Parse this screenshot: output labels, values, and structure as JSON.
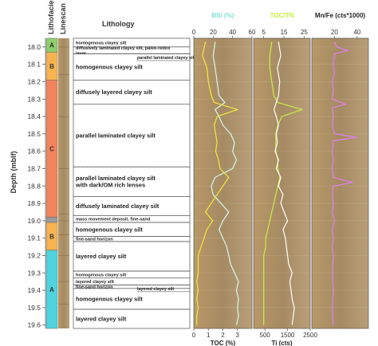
{
  "chart_data": {
    "type": "line",
    "depth_axis": {
      "label": "Depth (mblf)",
      "ylim": [
        17.95,
        19.62
      ],
      "ticks": [
        18.0,
        18.1,
        18.2,
        18.3,
        18.4,
        18.5,
        18.6,
        18.7,
        18.8,
        18.9,
        19.0,
        19.1,
        19.2,
        19.3,
        19.4,
        19.5,
        19.6
      ],
      "tick_labels": [
        "18.0",
        "18.1",
        "18.2",
        "18.3",
        "18.4",
        "18.5",
        "18.6",
        "18.7",
        "18.8",
        "18.9",
        "19.0",
        "19.1",
        "19.2",
        "19.3",
        "19.4",
        "19.5",
        "19.6"
      ]
    },
    "column_headers": {
      "lithofacies": "Lithofacies",
      "linescan": "Linescan",
      "lithology": "Lithology"
    },
    "lithofacies": [
      {
        "label": "A",
        "top": 17.95,
        "bottom": 18.03,
        "color": "#8fd06a"
      },
      {
        "label": "B",
        "top": 18.03,
        "bottom": 18.19,
        "color": "#f7b350"
      },
      {
        "label": "C",
        "top": 18.19,
        "bottom": 18.98,
        "color": "#f4845c"
      },
      {
        "label": "",
        "top": 18.98,
        "bottom": 19.01,
        "color": "#9b9b9b"
      },
      {
        "label": "B",
        "top": 19.01,
        "bottom": 19.17,
        "color": "#f7b350"
      },
      {
        "label": "A",
        "top": 19.17,
        "bottom": 19.62,
        "color": "#4fd3df"
      }
    ],
    "lithology": [
      {
        "label": "homogenous clayey silt",
        "top": 17.95,
        "bottom": 18.0,
        "size": "small",
        "dashed": false
      },
      {
        "label": "diffusively laminated clayey silt, paleo-redox layer",
        "top": 18.0,
        "bottom": 18.04,
        "size": "small",
        "dashed": false
      },
      {
        "label": "homogenous clayey silt",
        "top": 18.04,
        "bottom": 18.19,
        "size": "large",
        "dashed": false
      },
      {
        "label": "diffusely layered clayey silt",
        "top": 18.19,
        "bottom": 18.33,
        "size": "large",
        "dashed": false
      },
      {
        "label": "parallel laminated clayey silt",
        "top": 18.33,
        "bottom": 18.69,
        "size": "large",
        "dashed": true
      },
      {
        "label": "parallel laminated clayey silt with dark/OM rich lenses",
        "top": 18.69,
        "bottom": 18.86,
        "size": "large",
        "dashed": false
      },
      {
        "label": "diffusely laminated clayey silt",
        "top": 18.86,
        "bottom": 18.97,
        "size": "large",
        "dashed": false
      },
      {
        "label": "mass movement deposit, fine-sand",
        "top": 18.97,
        "bottom": 19.01,
        "size": "small",
        "dashed": false
      },
      {
        "label": "homogenous clayey silt",
        "top": 19.01,
        "bottom": 19.09,
        "size": "large",
        "dashed": false
      },
      {
        "label": "fine-sand horizon",
        "top": 19.09,
        "bottom": 19.12,
        "size": "small",
        "dashed": false
      },
      {
        "label": "layered clayey silt",
        "top": 19.12,
        "bottom": 19.29,
        "size": "large",
        "dashed": false
      },
      {
        "label": "homogenous clayey silt",
        "top": 19.29,
        "bottom": 19.33,
        "size": "small",
        "dashed": false
      },
      {
        "label": "layered clayey silt",
        "top": 19.33,
        "bottom": 19.37,
        "size": "small",
        "dashed": false
      },
      {
        "label": "fine-sand horizon",
        "top": 19.37,
        "bottom": 19.39,
        "size": "small",
        "dashed": false
      },
      {
        "label": "homogenous clayey silt",
        "top": 19.39,
        "bottom": 19.51,
        "size": "large",
        "dashed": false
      },
      {
        "label": "layered clayey silt",
        "top": 19.51,
        "bottom": 19.62,
        "size": "large",
        "dashed": false
      }
    ],
    "lithology_notes": [
      {
        "label": "parallel laminated clayey silt",
        "depth": 18.06
      },
      {
        "label": "layered clayey silt",
        "depth": 19.39
      }
    ],
    "panels": [
      {
        "top_label": "BSi (%)",
        "top_label_color": "#7fe3d2",
        "top_ticks": [
          0,
          20,
          40,
          60
        ],
        "top_range": [
          0,
          60
        ],
        "bottom_label": "TOC (%)",
        "bottom_label_color": "#222222",
        "bottom_ticks": [
          0,
          1,
          2,
          3
        ],
        "bottom_range": [
          0,
          4
        ],
        "series": [
          {
            "name": "BSi (%)",
            "color": "#d4faf0",
            "scale": "top",
            "values": [
              [
                17.97,
                22
              ],
              [
                18.05,
                20
              ],
              [
                18.12,
                22
              ],
              [
                18.2,
                24
              ],
              [
                18.28,
                26
              ],
              [
                18.32,
                32
              ],
              [
                18.36,
                22
              ],
              [
                18.4,
                26
              ],
              [
                18.45,
                30
              ],
              [
                18.5,
                38
              ],
              [
                18.55,
                42
              ],
              [
                18.6,
                40
              ],
              [
                18.65,
                44
              ],
              [
                18.7,
                40
              ],
              [
                18.75,
                22
              ],
              [
                18.8,
                18
              ],
              [
                18.85,
                20
              ],
              [
                18.9,
                28
              ],
              [
                18.95,
                36
              ],
              [
                19.0,
                30
              ],
              [
                19.05,
                26
              ],
              [
                19.1,
                30
              ],
              [
                19.15,
                34
              ],
              [
                19.2,
                36
              ],
              [
                19.25,
                38
              ],
              [
                19.3,
                42
              ],
              [
                19.35,
                46
              ],
              [
                19.4,
                44
              ],
              [
                19.45,
                46
              ],
              [
                19.5,
                45
              ],
              [
                19.55,
                46
              ],
              [
                19.6,
                44
              ]
            ]
          },
          {
            "name": "TOC (%)",
            "color": "#f2ea3c",
            "scale": "bottom",
            "values": [
              [
                17.97,
                0.8
              ],
              [
                18.05,
                0.6
              ],
              [
                18.12,
                0.9
              ],
              [
                18.2,
                1.0
              ],
              [
                18.28,
                1.2
              ],
              [
                18.32,
                1.4
              ],
              [
                18.36,
                3.0
              ],
              [
                18.4,
                1.6
              ],
              [
                18.45,
                1.4
              ],
              [
                18.5,
                1.5
              ],
              [
                18.55,
                1.6
              ],
              [
                18.6,
                1.5
              ],
              [
                18.65,
                1.7
              ],
              [
                18.7,
                1.8
              ],
              [
                18.75,
                2.4
              ],
              [
                18.8,
                2.0
              ],
              [
                18.85,
                1.6
              ],
              [
                18.9,
                1.2
              ],
              [
                18.95,
                0.8
              ],
              [
                19.0,
                1.3
              ],
              [
                19.05,
                0.9
              ],
              [
                19.1,
                0.7
              ],
              [
                19.15,
                0.5
              ],
              [
                19.2,
                0.3
              ],
              [
                19.25,
                0.3
              ],
              [
                19.3,
                0.3
              ],
              [
                19.35,
                0.2
              ],
              [
                19.4,
                0.3
              ],
              [
                19.45,
                0.2
              ],
              [
                19.5,
                0.3
              ],
              [
                19.55,
                0.2
              ],
              [
                19.6,
                0.2
              ]
            ]
          }
        ]
      },
      {
        "top_label": "TOC/TN",
        "top_label_color": "#c7f03c",
        "top_ticks": [
          5,
          15,
          25
        ],
        "top_range": [
          0,
          28
        ],
        "bottom_label": "Ti (cts)",
        "bottom_label_color": "#222222",
        "bottom_ticks": [
          500,
          1500,
          2500
        ],
        "bottom_range": [
          0,
          2500
        ],
        "series": [
          {
            "name": "TOC/TN",
            "color": "#c8f046",
            "scale": "top",
            "values": [
              [
                17.97,
                9
              ],
              [
                18.05,
                8
              ],
              [
                18.12,
                8
              ],
              [
                18.2,
                9
              ],
              [
                18.28,
                10
              ],
              [
                18.32,
                12
              ],
              [
                18.36,
                24
              ],
              [
                18.4,
                14
              ],
              [
                18.45,
                12
              ],
              [
                18.5,
                11
              ],
              [
                18.55,
                11
              ],
              [
                18.6,
                11
              ],
              [
                18.65,
                12
              ],
              [
                18.7,
                12
              ],
              [
                18.75,
                13
              ],
              [
                18.8,
                12
              ],
              [
                18.85,
                11
              ],
              [
                18.9,
                10
              ],
              [
                18.95,
                9
              ],
              [
                19.0,
                8
              ],
              [
                19.05,
                7
              ],
              [
                19.1,
                6
              ],
              [
                19.15,
                6
              ],
              [
                19.2,
                5
              ],
              [
                19.25,
                5
              ],
              [
                19.3,
                5
              ],
              [
                19.35,
                5
              ],
              [
                19.4,
                5
              ],
              [
                19.45,
                5
              ],
              [
                19.5,
                5
              ],
              [
                19.55,
                5
              ],
              [
                19.6,
                5
              ]
            ]
          },
          {
            "name": "Ti (cts)",
            "color": "#ffffff",
            "scale": "bottom",
            "values": [
              [
                17.97,
                1100
              ],
              [
                18.05,
                1200
              ],
              [
                18.12,
                1050
              ],
              [
                18.2,
                1150
              ],
              [
                18.28,
                1100
              ],
              [
                18.32,
                1000
              ],
              [
                18.36,
                900
              ],
              [
                18.4,
                1000
              ],
              [
                18.45,
                1100
              ],
              [
                18.5,
                1000
              ],
              [
                18.55,
                1050
              ],
              [
                18.6,
                950
              ],
              [
                18.65,
                1100
              ],
              [
                18.7,
                1000
              ],
              [
                18.75,
                1200
              ],
              [
                18.8,
                1100
              ],
              [
                18.85,
                1300
              ],
              [
                18.9,
                1200
              ],
              [
                18.95,
                1350
              ],
              [
                19.0,
                1500
              ],
              [
                19.05,
                1300
              ],
              [
                19.1,
                1400
              ],
              [
                19.15,
                1450
              ],
              [
                19.2,
                1500
              ],
              [
                19.25,
                1550
              ],
              [
                19.3,
                1700
              ],
              [
                19.35,
                1600
              ],
              [
                19.4,
                1650
              ],
              [
                19.45,
                1700
              ],
              [
                19.5,
                1800
              ],
              [
                19.55,
                1750
              ],
              [
                19.6,
                1700
              ]
            ]
          }
        ]
      },
      {
        "top_label": "Mn/Fe (cts*1000)",
        "top_label_color": "#222222",
        "top_ticks": [
          20,
          40
        ],
        "top_range": [
          0,
          50
        ],
        "bottom_label": "",
        "bottom_label_color": "#222222",
        "bottom_ticks": [],
        "bottom_range": [
          0,
          50
        ],
        "series": [
          {
            "name": "Mn/Fe (cts*1000)",
            "color": "#e27ff2",
            "scale": "top",
            "values": [
              [
                17.97,
                20
              ],
              [
                18.0,
                22
              ],
              [
                18.02,
                32
              ],
              [
                18.04,
                20
              ],
              [
                18.1,
                19
              ],
              [
                18.15,
                20
              ],
              [
                18.2,
                18
              ],
              [
                18.25,
                19
              ],
              [
                18.3,
                18
              ],
              [
                18.33,
                30
              ],
              [
                18.35,
                18
              ],
              [
                18.4,
                19
              ],
              [
                18.45,
                18
              ],
              [
                18.5,
                20
              ],
              [
                18.52,
                40
              ],
              [
                18.54,
                19
              ],
              [
                18.6,
                18
              ],
              [
                18.65,
                19
              ],
              [
                18.7,
                18
              ],
              [
                18.75,
                19
              ],
              [
                18.78,
                36
              ],
              [
                18.8,
                19
              ],
              [
                18.85,
                18
              ],
              [
                18.9,
                19
              ],
              [
                18.95,
                18
              ],
              [
                19.0,
                20
              ],
              [
                19.05,
                18
              ],
              [
                19.1,
                19
              ],
              [
                19.15,
                18
              ],
              [
                19.2,
                19
              ],
              [
                19.3,
                18
              ],
              [
                19.4,
                19
              ],
              [
                19.5,
                18
              ],
              [
                19.6,
                19
              ]
            ]
          }
        ]
      }
    ]
  }
}
